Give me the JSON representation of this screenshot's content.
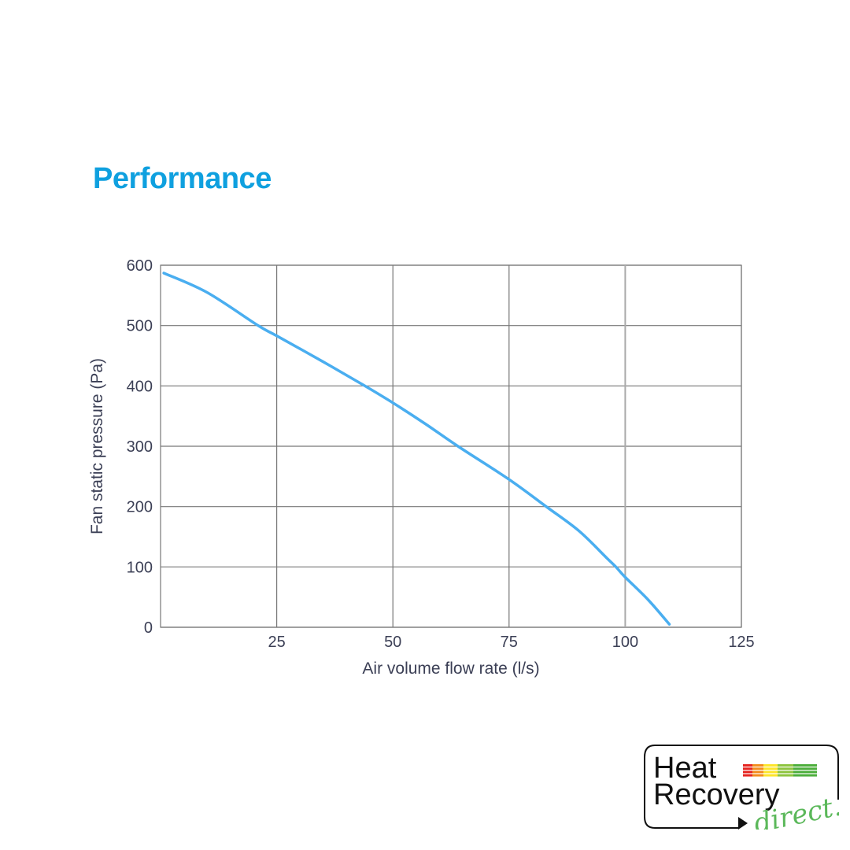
{
  "heading": "Performance",
  "chart_data": {
    "type": "line",
    "title": "",
    "xlabel": "Air volume flow rate (l/s)",
    "ylabel": "Fan static pressure (Pa)",
    "xlim": [
      0,
      125
    ],
    "ylim": [
      0,
      600
    ],
    "xticks": [
      25,
      50,
      75,
      100,
      125
    ],
    "yticks": [
      0,
      100,
      200,
      300,
      400,
      500,
      600
    ],
    "grid": true,
    "line_color": "#4aaef0",
    "series": [
      {
        "x": [
          0.7,
          10,
          21,
          25,
          35,
          44,
          50,
          57,
          64,
          75,
          83,
          90,
          96,
          98,
          100,
          105,
          109.5
        ],
        "y": [
          587,
          555,
          500,
          483,
          440,
          400,
          372,
          337,
          300,
          245,
          200,
          160,
          115,
          100,
          83,
          45,
          5
        ]
      }
    ]
  },
  "logo": {
    "line1": "Heat",
    "line2": "Recovery",
    "line3": "direct.",
    "bar_colors": [
      "#e52521",
      "#f28c1c",
      "#fde52a",
      "#8dc43f",
      "#4cae3c"
    ]
  }
}
